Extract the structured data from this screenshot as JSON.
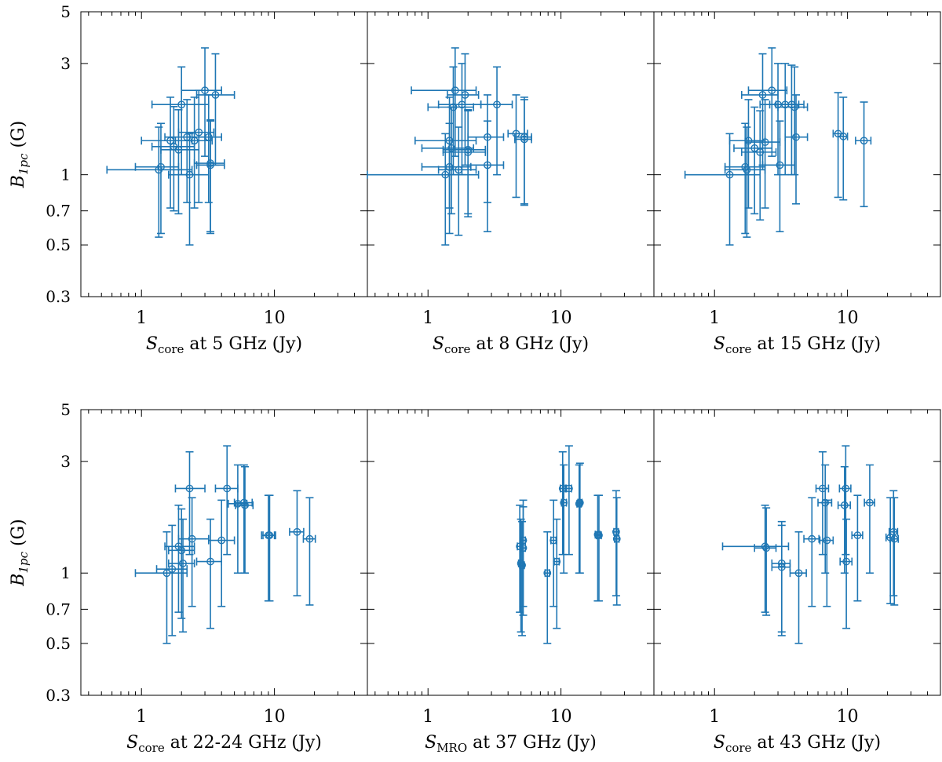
{
  "figure": {
    "y_axis_label": {
      "main": "B",
      "sub": "1pc",
      "unit": " (G)"
    },
    "color": "#1f77b4"
  },
  "chart_data": [
    {
      "type": "scatter",
      "row": 0,
      "col": 0,
      "xscale": "log",
      "yscale": "log",
      "xlim": [
        0.35,
        50
      ],
      "ylim": [
        0.3,
        5
      ],
      "xticks": [
        1,
        10
      ],
      "xticklabels": [
        "1",
        "10"
      ],
      "yticks": [
        0.3,
        0.5,
        0.7,
        1,
        3,
        5
      ],
      "yticklabels": [
        "0.3",
        "0.5",
        "0.7",
        "1",
        "3",
        "5"
      ],
      "xlabel": {
        "main": "S",
        "sub": "core",
        "rest": " at 5 GHz (Jy)"
      },
      "points": [
        {
          "x": 1.35,
          "xlo": 0.55,
          "xhi": 2.4,
          "y": 1.05,
          "ylo": 0.54,
          "yhi": 1.6
        },
        {
          "x": 1.4,
          "xlo": 0.9,
          "xhi": 1.9,
          "y": 1.08,
          "ylo": 0.56,
          "yhi": 1.66
        },
        {
          "x": 1.65,
          "xlo": 1.0,
          "xhi": 2.4,
          "y": 1.4,
          "ylo": 0.72,
          "yhi": 2.15
        },
        {
          "x": 1.75,
          "xlo": 1.2,
          "xhi": 2.5,
          "y": 1.32,
          "ylo": 0.7,
          "yhi": 1.96
        },
        {
          "x": 1.9,
          "xlo": 1.4,
          "xhi": 2.7,
          "y": 1.28,
          "ylo": 0.68,
          "yhi": 1.9
        },
        {
          "x": 2.0,
          "xlo": 1.2,
          "xhi": 3.2,
          "y": 2.0,
          "ylo": 1.0,
          "yhi": 2.9
        },
        {
          "x": 2.2,
          "xlo": 1.5,
          "xhi": 3.0,
          "y": 1.45,
          "ylo": 0.76,
          "yhi": 2.1
        },
        {
          "x": 2.3,
          "xlo": 1.6,
          "xhi": 3.2,
          "y": 1.0,
          "ylo": 0.5,
          "yhi": 1.5
        },
        {
          "x": 2.5,
          "xlo": 1.8,
          "xhi": 3.4,
          "y": 1.4,
          "ylo": 0.72,
          "yhi": 2.15
        },
        {
          "x": 2.7,
          "xlo": 1.9,
          "xhi": 3.5,
          "y": 1.52,
          "ylo": 0.76,
          "yhi": 2.3
        },
        {
          "x": 3.0,
          "xlo": 2.0,
          "xhi": 4.0,
          "y": 2.3,
          "ylo": 1.2,
          "yhi": 3.5
        },
        {
          "x": 3.2,
          "xlo": 2.4,
          "xhi": 4.0,
          "y": 1.45,
          "ylo": 0.76,
          "yhi": 2.2
        },
        {
          "x": 3.3,
          "xlo": 2.6,
          "xhi": 4.2,
          "y": 1.1,
          "ylo": 0.56,
          "yhi": 1.7
        },
        {
          "x": 3.3,
          "xlo": 2.5,
          "xhi": 4.2,
          "y": 1.12,
          "ylo": 0.57,
          "yhi": 1.72
        },
        {
          "x": 3.6,
          "xlo": 2.6,
          "xhi": 5.0,
          "y": 2.2,
          "ylo": 1.1,
          "yhi": 3.3
        }
      ]
    },
    {
      "type": "scatter",
      "row": 0,
      "col": 1,
      "xscale": "log",
      "yscale": "log",
      "xlim": [
        0.35,
        50
      ],
      "ylim": [
        0.3,
        5
      ],
      "xticks": [
        1,
        10
      ],
      "xticklabels": [
        "1",
        "10"
      ],
      "yticks": [
        0.3,
        0.5,
        0.7,
        1,
        3,
        5
      ],
      "yticklabels": [
        "0.3",
        "0.5",
        "0.7",
        "1",
        "3",
        "5"
      ],
      "xlabel": {
        "main": "S",
        "sub": "core",
        "rest": " at 8 GHz (Jy)"
      },
      "points": [
        {
          "x": 1.35,
          "xlo": 0.35,
          "xhi": 2.4,
          "y": 1.0,
          "ylo": 0.5,
          "yhi": 1.5
        },
        {
          "x": 1.45,
          "xlo": 0.8,
          "xhi": 2.3,
          "y": 1.4,
          "ylo": 0.72,
          "yhi": 2.15
        },
        {
          "x": 1.45,
          "xlo": 0.9,
          "xhi": 2.1,
          "y": 1.08,
          "ylo": 0.56,
          "yhi": 1.66
        },
        {
          "x": 1.5,
          "xlo": 0.9,
          "xhi": 2.2,
          "y": 1.3,
          "ylo": 0.68,
          "yhi": 1.95
        },
        {
          "x": 1.55,
          "xlo": 1.0,
          "xhi": 2.2,
          "y": 1.95,
          "ylo": 1.0,
          "yhi": 2.9
        },
        {
          "x": 1.6,
          "xlo": 0.75,
          "xhi": 2.3,
          "y": 2.3,
          "ylo": 1.2,
          "yhi": 3.5
        },
        {
          "x": 1.7,
          "xlo": 1.2,
          "xhi": 2.3,
          "y": 1.05,
          "ylo": 0.55,
          "yhi": 1.6
        },
        {
          "x": 1.8,
          "xlo": 1.2,
          "xhi": 2.5,
          "y": 2.0,
          "ylo": 1.0,
          "yhi": 3.0
        },
        {
          "x": 1.9,
          "xlo": 1.4,
          "xhi": 2.4,
          "y": 2.2,
          "ylo": 1.1,
          "yhi": 3.3
        },
        {
          "x": 2.0,
          "xlo": 1.3,
          "xhi": 2.7,
          "y": 1.25,
          "ylo": 0.66,
          "yhi": 1.88
        },
        {
          "x": 2.0,
          "xlo": 1.3,
          "xhi": 2.7,
          "y": 1.28,
          "ylo": 0.68,
          "yhi": 1.9
        },
        {
          "x": 2.8,
          "xlo": 2.0,
          "xhi": 3.7,
          "y": 1.45,
          "ylo": 0.76,
          "yhi": 2.2
        },
        {
          "x": 2.8,
          "xlo": 2.0,
          "xhi": 3.7,
          "y": 1.1,
          "ylo": 0.57,
          "yhi": 1.7
        },
        {
          "x": 3.3,
          "xlo": 2.5,
          "xhi": 4.3,
          "y": 2.0,
          "ylo": 1.0,
          "yhi": 2.9
        },
        {
          "x": 4.6,
          "xlo": 4.0,
          "xhi": 5.6,
          "y": 1.5,
          "ylo": 0.8,
          "yhi": 2.2
        },
        {
          "x": 5.3,
          "xlo": 4.5,
          "xhi": 6.0,
          "y": 1.45,
          "ylo": 0.75,
          "yhi": 2.15
        },
        {
          "x": 5.3,
          "xlo": 4.5,
          "xhi": 6.0,
          "y": 1.42,
          "ylo": 0.74,
          "yhi": 2.1
        }
      ]
    },
    {
      "type": "scatter",
      "row": 0,
      "col": 2,
      "xscale": "log",
      "yscale": "log",
      "xlim": [
        0.35,
        50
      ],
      "ylim": [
        0.3,
        5
      ],
      "xticks": [
        1,
        10
      ],
      "xticklabels": [
        "1",
        "10"
      ],
      "yticks": [
        0.3,
        0.5,
        0.7,
        1,
        3,
        5
      ],
      "yticklabels": [
        "0.3",
        "0.5",
        "0.7",
        "1",
        "3",
        "5"
      ],
      "xlabel": {
        "main": "S",
        "sub": "core",
        "rest": " at 15 GHz (Jy)"
      },
      "points": [
        {
          "x": 1.3,
          "xlo": 0.6,
          "xhi": 2.2,
          "y": 1.0,
          "ylo": 0.5,
          "yhi": 1.5
        },
        {
          "x": 1.7,
          "xlo": 1.2,
          "xhi": 2.4,
          "y": 1.08,
          "ylo": 0.56,
          "yhi": 1.66
        },
        {
          "x": 1.75,
          "xlo": 1.2,
          "xhi": 2.4,
          "y": 1.05,
          "ylo": 0.54,
          "yhi": 1.6
        },
        {
          "x": 1.8,
          "xlo": 1.3,
          "xhi": 2.4,
          "y": 1.4,
          "ylo": 0.72,
          "yhi": 2.1
        },
        {
          "x": 2.0,
          "xlo": 1.4,
          "xhi": 2.7,
          "y": 1.3,
          "ylo": 0.68,
          "yhi": 1.95
        },
        {
          "x": 2.2,
          "xlo": 1.6,
          "xhi": 2.9,
          "y": 1.25,
          "ylo": 0.64,
          "yhi": 1.88
        },
        {
          "x": 2.3,
          "xlo": 1.6,
          "xhi": 3.0,
          "y": 2.2,
          "ylo": 1.1,
          "yhi": 3.3
        },
        {
          "x": 2.4,
          "xlo": 1.7,
          "xhi": 3.1,
          "y": 1.38,
          "ylo": 0.72,
          "yhi": 2.1
        },
        {
          "x": 2.7,
          "xlo": 1.8,
          "xhi": 3.5,
          "y": 2.3,
          "ylo": 1.2,
          "yhi": 3.5
        },
        {
          "x": 3.0,
          "xlo": 2.2,
          "xhi": 3.8,
          "y": 2.0,
          "ylo": 1.0,
          "yhi": 3.0
        },
        {
          "x": 3.1,
          "xlo": 2.3,
          "xhi": 4.0,
          "y": 1.1,
          "ylo": 0.57,
          "yhi": 1.7
        },
        {
          "x": 3.4,
          "xlo": 2.6,
          "xhi": 4.3,
          "y": 2.0,
          "ylo": 1.0,
          "yhi": 3.0
        },
        {
          "x": 3.8,
          "xlo": 2.9,
          "xhi": 4.7,
          "y": 2.0,
          "ylo": 1.0,
          "yhi": 2.95
        },
        {
          "x": 4.0,
          "xlo": 3.0,
          "xhi": 5.0,
          "y": 1.95,
          "ylo": 1.0,
          "yhi": 2.9
        },
        {
          "x": 4.1,
          "xlo": 3.4,
          "xhi": 5.0,
          "y": 1.45,
          "ylo": 0.75,
          "yhi": 2.2
        },
        {
          "x": 8.5,
          "xlo": 7.8,
          "xhi": 9.3,
          "y": 1.5,
          "ylo": 0.8,
          "yhi": 2.25
        },
        {
          "x": 9.3,
          "xlo": 8.5,
          "xhi": 10.0,
          "y": 1.46,
          "ylo": 0.78,
          "yhi": 2.15
        },
        {
          "x": 13.3,
          "xlo": 11.5,
          "xhi": 15.0,
          "y": 1.4,
          "ylo": 0.73,
          "yhi": 2.05
        }
      ]
    },
    {
      "type": "scatter",
      "row": 1,
      "col": 0,
      "xscale": "log",
      "yscale": "log",
      "xlim": [
        0.35,
        50
      ],
      "ylim": [
        0.3,
        5
      ],
      "xticks": [
        1,
        10
      ],
      "xticklabels": [
        "1",
        "10"
      ],
      "yticks": [
        0.3,
        0.5,
        0.7,
        1,
        3,
        5
      ],
      "yticklabels": [
        "0.3",
        "0.5",
        "0.7",
        "1",
        "3",
        "5"
      ],
      "xlabel": {
        "main": "S",
        "sub": "core",
        "rest": " at 22-24 GHz (Jy)"
      },
      "points": [
        {
          "x": 1.55,
          "xlo": 0.9,
          "xhi": 2.2,
          "y": 1.0,
          "ylo": 0.5,
          "yhi": 1.5
        },
        {
          "x": 1.7,
          "xlo": 1.3,
          "xhi": 2.2,
          "y": 1.04,
          "ylo": 0.54,
          "yhi": 1.6
        },
        {
          "x": 1.9,
          "xlo": 1.5,
          "xhi": 2.5,
          "y": 1.3,
          "ylo": 0.68,
          "yhi": 1.95
        },
        {
          "x": 2.0,
          "xlo": 1.6,
          "xhi": 2.5,
          "y": 1.25,
          "ylo": 0.64,
          "yhi": 1.88
        },
        {
          "x": 2.05,
          "xlo": 1.6,
          "xhi": 2.5,
          "y": 1.1,
          "ylo": 0.56,
          "yhi": 1.7
        },
        {
          "x": 2.3,
          "xlo": 1.8,
          "xhi": 3.0,
          "y": 2.3,
          "ylo": 1.2,
          "yhi": 3.3
        },
        {
          "x": 2.4,
          "xlo": 1.9,
          "xhi": 3.2,
          "y": 1.4,
          "ylo": 0.72,
          "yhi": 2.1
        },
        {
          "x": 3.3,
          "xlo": 2.6,
          "xhi": 4.0,
          "y": 1.12,
          "ylo": 0.58,
          "yhi": 1.7
        },
        {
          "x": 4.0,
          "xlo": 3.2,
          "xhi": 5.0,
          "y": 1.38,
          "ylo": 0.72,
          "yhi": 2.05
        },
        {
          "x": 4.4,
          "xlo": 3.6,
          "xhi": 5.3,
          "y": 2.3,
          "ylo": 1.2,
          "yhi": 3.5
        },
        {
          "x": 5.3,
          "xlo": 4.5,
          "xhi": 6.2,
          "y": 1.98,
          "ylo": 1.0,
          "yhi": 2.9
        },
        {
          "x": 5.9,
          "xlo": 5.0,
          "xhi": 6.8,
          "y": 2.0,
          "ylo": 1.0,
          "yhi": 2.9
        },
        {
          "x": 6.0,
          "xlo": 5.1,
          "xhi": 6.9,
          "y": 1.95,
          "ylo": 1.0,
          "yhi": 2.85
        },
        {
          "x": 9.0,
          "xlo": 8.0,
          "xhi": 10.0,
          "y": 1.45,
          "ylo": 0.76,
          "yhi": 2.15
        },
        {
          "x": 9.2,
          "xlo": 8.2,
          "xhi": 10.2,
          "y": 1.45,
          "ylo": 0.76,
          "yhi": 2.15
        },
        {
          "x": 14.8,
          "xlo": 13.0,
          "xhi": 16.6,
          "y": 1.5,
          "ylo": 0.8,
          "yhi": 2.25
        },
        {
          "x": 18.4,
          "xlo": 16.5,
          "xhi": 20.3,
          "y": 1.4,
          "ylo": 0.73,
          "yhi": 2.1
        }
      ]
    },
    {
      "type": "scatter",
      "row": 1,
      "col": 1,
      "xscale": "log",
      "yscale": "log",
      "xlim": [
        0.35,
        50
      ],
      "ylim": [
        0.3,
        5
      ],
      "xticks": [
        1,
        10
      ],
      "xticklabels": [
        "1",
        "10"
      ],
      "yticks": [
        0.3,
        0.5,
        0.7,
        1,
        3,
        5
      ],
      "yticklabels": [
        "0.3",
        "0.5",
        "0.7",
        "1",
        "3",
        "5"
      ],
      "xlabel": {
        "main": "S",
        "sub": "MRO",
        "rest": " at 37 GHz (Jy)"
      },
      "points": [
        {
          "x": 4.9,
          "xlo": 4.7,
          "xhi": 5.1,
          "y": 1.3,
          "ylo": 0.68,
          "yhi": 1.95
        },
        {
          "x": 5.0,
          "xlo": 4.8,
          "xhi": 5.2,
          "y": 1.1,
          "ylo": 0.56,
          "yhi": 1.7
        },
        {
          "x": 5.1,
          "xlo": 4.9,
          "xhi": 5.3,
          "y": 1.08,
          "ylo": 0.54,
          "yhi": 1.66
        },
        {
          "x": 5.2,
          "xlo": 5.0,
          "xhi": 5.4,
          "y": 1.38,
          "ylo": 0.72,
          "yhi": 2.05
        },
        {
          "x": 5.2,
          "xlo": 5.0,
          "xhi": 5.4,
          "y": 1.28,
          "ylo": 0.66,
          "yhi": 1.92
        },
        {
          "x": 7.9,
          "xlo": 7.6,
          "xhi": 8.2,
          "y": 1.0,
          "ylo": 0.5,
          "yhi": 1.5
        },
        {
          "x": 8.8,
          "xlo": 8.4,
          "xhi": 9.2,
          "y": 1.38,
          "ylo": 0.72,
          "yhi": 2.05
        },
        {
          "x": 9.3,
          "xlo": 8.9,
          "xhi": 9.7,
          "y": 1.12,
          "ylo": 0.58,
          "yhi": 1.7
        },
        {
          "x": 10.3,
          "xlo": 9.9,
          "xhi": 10.8,
          "y": 2.3,
          "ylo": 1.2,
          "yhi": 3.3
        },
        {
          "x": 10.5,
          "xlo": 10.1,
          "xhi": 11.0,
          "y": 2.0,
          "ylo": 1.0,
          "yhi": 2.9
        },
        {
          "x": 11.5,
          "xlo": 11.0,
          "xhi": 12.0,
          "y": 2.3,
          "ylo": 1.2,
          "yhi": 3.5
        },
        {
          "x": 13.7,
          "xlo": 13.2,
          "xhi": 14.2,
          "y": 1.98,
          "ylo": 1.0,
          "yhi": 2.9
        },
        {
          "x": 13.9,
          "xlo": 13.4,
          "xhi": 14.4,
          "y": 2.0,
          "ylo": 1.0,
          "yhi": 2.95
        },
        {
          "x": 18.9,
          "xlo": 18.1,
          "xhi": 19.7,
          "y": 1.46,
          "ylo": 0.76,
          "yhi": 2.15
        },
        {
          "x": 19.3,
          "xlo": 18.5,
          "xhi": 20.1,
          "y": 1.45,
          "ylo": 0.76,
          "yhi": 2.15
        },
        {
          "x": 26.0,
          "xlo": 25.0,
          "xhi": 27.0,
          "y": 1.5,
          "ylo": 0.8,
          "yhi": 2.25
        },
        {
          "x": 26.3,
          "xlo": 25.3,
          "xhi": 27.3,
          "y": 1.4,
          "ylo": 0.73,
          "yhi": 2.1
        }
      ]
    },
    {
      "type": "scatter",
      "row": 1,
      "col": 2,
      "xscale": "log",
      "yscale": "log",
      "xlim": [
        0.35,
        50
      ],
      "ylim": [
        0.3,
        5
      ],
      "xticks": [
        1,
        10
      ],
      "xticklabels": [
        "1",
        "10"
      ],
      "yticks": [
        0.3,
        0.5,
        0.7,
        1,
        3,
        5
      ],
      "yticklabels": [
        "0.3",
        "0.5",
        "0.7",
        "1",
        "3",
        "5"
      ],
      "xlabel": {
        "main": "S",
        "sub": "core",
        "rest": " at 43 GHz (Jy)"
      },
      "points": [
        {
          "x": 2.4,
          "xlo": 1.15,
          "xhi": 3.6,
          "y": 1.3,
          "ylo": 0.68,
          "yhi": 1.95
        },
        {
          "x": 2.45,
          "xlo": 2.0,
          "xhi": 2.9,
          "y": 1.28,
          "ylo": 0.66,
          "yhi": 1.9
        },
        {
          "x": 3.2,
          "xlo": 2.7,
          "xhi": 3.7,
          "y": 1.1,
          "ylo": 0.56,
          "yhi": 1.66
        },
        {
          "x": 3.2,
          "xlo": 2.7,
          "xhi": 3.7,
          "y": 1.06,
          "ylo": 0.54,
          "yhi": 1.6
        },
        {
          "x": 4.3,
          "xlo": 3.7,
          "xhi": 4.9,
          "y": 1.0,
          "ylo": 0.5,
          "yhi": 1.5
        },
        {
          "x": 5.4,
          "xlo": 4.7,
          "xhi": 6.1,
          "y": 1.4,
          "ylo": 0.72,
          "yhi": 2.1
        },
        {
          "x": 6.5,
          "xlo": 5.8,
          "xhi": 7.2,
          "y": 2.3,
          "ylo": 1.2,
          "yhi": 3.3
        },
        {
          "x": 6.8,
          "xlo": 6.0,
          "xhi": 7.6,
          "y": 2.0,
          "ylo": 1.0,
          "yhi": 2.9
        },
        {
          "x": 7.0,
          "xlo": 6.2,
          "xhi": 7.8,
          "y": 1.38,
          "ylo": 0.72,
          "yhi": 2.05
        },
        {
          "x": 9.5,
          "xlo": 8.5,
          "xhi": 10.5,
          "y": 1.95,
          "ylo": 1.0,
          "yhi": 2.85
        },
        {
          "x": 9.7,
          "xlo": 8.7,
          "xhi": 10.6,
          "y": 2.3,
          "ylo": 1.2,
          "yhi": 3.5
        },
        {
          "x": 9.8,
          "xlo": 8.8,
          "xhi": 10.8,
          "y": 1.12,
          "ylo": 0.58,
          "yhi": 1.7
        },
        {
          "x": 11.9,
          "xlo": 10.8,
          "xhi": 13.0,
          "y": 1.45,
          "ylo": 0.76,
          "yhi": 2.15
        },
        {
          "x": 14.7,
          "xlo": 13.4,
          "xhi": 16.0,
          "y": 2.0,
          "ylo": 1.0,
          "yhi": 2.9
        },
        {
          "x": 21.0,
          "xlo": 19.5,
          "xhi": 22.5,
          "y": 1.42,
          "ylo": 0.74,
          "yhi": 2.1
        },
        {
          "x": 22.2,
          "xlo": 20.6,
          "xhi": 23.8,
          "y": 1.5,
          "ylo": 0.8,
          "yhi": 2.25
        },
        {
          "x": 22.5,
          "xlo": 20.9,
          "xhi": 24.1,
          "y": 1.4,
          "ylo": 0.73,
          "yhi": 2.1
        }
      ]
    }
  ]
}
